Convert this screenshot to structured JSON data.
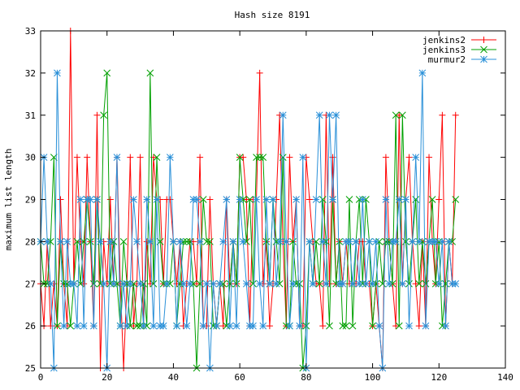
{
  "chart_data": {
    "type": "line",
    "title": "Hash size 8191",
    "xlabel": "",
    "ylabel": "maximum list length",
    "xlim": [
      0,
      140
    ],
    "ylim": [
      25,
      33
    ],
    "xticks": [
      0,
      20,
      40,
      60,
      80,
      100,
      120,
      140
    ],
    "yticks": [
      25,
      26,
      27,
      28,
      29,
      30,
      31,
      32,
      33
    ],
    "grid": false,
    "legend_position": "top-right",
    "series": [
      {
        "name": "jenkins2",
        "color": "#ff0000",
        "marker": "plus",
        "x": [
          0,
          1,
          2,
          3,
          4,
          5,
          6,
          7,
          8,
          9,
          10,
          11,
          12,
          13,
          14,
          15,
          16,
          17,
          18,
          19,
          20,
          21,
          22,
          23,
          24,
          25,
          26,
          27,
          28,
          29,
          30,
          31,
          32,
          33,
          34,
          35,
          36,
          37,
          38,
          39,
          40,
          41,
          42,
          43,
          44,
          45,
          46,
          47,
          48,
          49,
          50,
          51,
          52,
          53,
          54,
          55,
          56,
          57,
          58,
          59,
          60,
          61,
          62,
          63,
          64,
          65,
          66,
          67,
          68,
          69,
          70,
          71,
          72,
          73,
          74,
          75,
          76,
          77,
          78,
          79,
          80,
          81,
          82,
          83,
          84,
          85,
          86,
          87,
          88,
          89,
          90,
          91,
          92,
          93,
          94,
          95,
          96,
          97,
          98,
          99,
          100,
          101,
          102,
          103,
          104,
          105,
          106,
          107,
          108,
          109,
          110,
          111,
          112,
          113,
          114,
          115,
          116,
          117,
          118,
          119,
          120,
          121,
          122,
          123,
          124,
          125
        ],
        "y": [
          27,
          26,
          28,
          26,
          27,
          26,
          29,
          27,
          26,
          33,
          27,
          30,
          28,
          27,
          30,
          28,
          26,
          31,
          25,
          28,
          27,
          29,
          27,
          30,
          27,
          25,
          27,
          30,
          26,
          27,
          30,
          26,
          28,
          27,
          30,
          29,
          29,
          27,
          29,
          29,
          28,
          27,
          28,
          26,
          27,
          28,
          28,
          27,
          30,
          26,
          26,
          29,
          27,
          26,
          27,
          26,
          29,
          27,
          28,
          27,
          30,
          30,
          29,
          26,
          29,
          29,
          32,
          27,
          28,
          26,
          27,
          29,
          31,
          28,
          26,
          30,
          28,
          29,
          26,
          26,
          30,
          29,
          28,
          27,
          27,
          26,
          31,
          27,
          30,
          27,
          28,
          27,
          28,
          27,
          27,
          27,
          28,
          28,
          27,
          27,
          26,
          27,
          26,
          25,
          30,
          28,
          27,
          26,
          31,
          27,
          29,
          30,
          28,
          27,
          26,
          28,
          26,
          30,
          28,
          27,
          29,
          31,
          26,
          28,
          27,
          31
        ]
      },
      {
        "name": "jenkins3",
        "color": "#00a000",
        "marker": "cross",
        "x": [
          0,
          1,
          2,
          3,
          4,
          5,
          6,
          7,
          8,
          9,
          10,
          11,
          12,
          13,
          14,
          15,
          16,
          17,
          18,
          19,
          20,
          21,
          22,
          23,
          24,
          25,
          26,
          27,
          28,
          29,
          30,
          31,
          32,
          33,
          34,
          35,
          36,
          37,
          38,
          39,
          40,
          41,
          42,
          43,
          44,
          45,
          46,
          47,
          48,
          49,
          50,
          51,
          52,
          53,
          54,
          55,
          56,
          57,
          58,
          59,
          60,
          61,
          62,
          63,
          64,
          65,
          66,
          67,
          68,
          69,
          70,
          71,
          72,
          73,
          74,
          75,
          76,
          77,
          78,
          79,
          80,
          81,
          82,
          83,
          84,
          85,
          86,
          87,
          88,
          89,
          90,
          91,
          92,
          93,
          94,
          95,
          96,
          97,
          98,
          99,
          100,
          101,
          102,
          103,
          104,
          105,
          106,
          107,
          108,
          109,
          110,
          111,
          112,
          113,
          114,
          115,
          116,
          117,
          118,
          119,
          120,
          121,
          122,
          123,
          124,
          125
        ],
        "y": [
          28,
          27,
          27,
          28,
          30,
          26,
          28,
          27,
          27,
          26,
          27,
          28,
          27,
          28,
          29,
          28,
          27,
          29,
          27,
          31,
          32,
          27,
          28,
          27,
          26,
          28,
          27,
          26,
          27,
          26,
          26,
          27,
          26,
          32,
          27,
          30,
          28,
          27,
          27,
          27,
          28,
          26,
          27,
          28,
          28,
          28,
          27,
          25,
          27,
          29,
          28,
          28,
          26,
          26,
          27,
          27,
          26,
          27,
          28,
          27,
          30,
          29,
          28,
          29,
          27,
          30,
          30,
          30,
          28,
          27,
          29,
          28,
          27,
          30,
          26,
          26,
          28,
          27,
          27,
          25,
          26,
          28,
          27,
          28,
          27,
          29,
          28,
          26,
          29,
          27,
          28,
          26,
          26,
          29,
          26,
          28,
          29,
          27,
          29,
          28,
          26,
          27,
          28,
          27,
          28,
          28,
          27,
          31,
          26,
          31,
          28,
          27,
          28,
          29,
          27,
          28,
          27,
          28,
          29,
          27,
          28,
          26,
          27,
          28,
          28,
          29
        ]
      },
      {
        "name": "murmur2",
        "color": "#2a90d8",
        "marker": "star",
        "x": [
          0,
          1,
          2,
          3,
          4,
          5,
          6,
          7,
          8,
          9,
          10,
          11,
          12,
          13,
          14,
          15,
          16,
          17,
          18,
          19,
          20,
          21,
          22,
          23,
          24,
          25,
          26,
          27,
          28,
          29,
          30,
          31,
          32,
          33,
          34,
          35,
          36,
          37,
          38,
          39,
          40,
          41,
          42,
          43,
          44,
          45,
          46,
          47,
          48,
          49,
          50,
          51,
          52,
          53,
          54,
          55,
          56,
          57,
          58,
          59,
          60,
          61,
          62,
          63,
          64,
          65,
          66,
          67,
          68,
          69,
          70,
          71,
          72,
          73,
          74,
          75,
          76,
          77,
          78,
          79,
          80,
          81,
          82,
          83,
          84,
          85,
          86,
          87,
          88,
          89,
          90,
          91,
          92,
          93,
          94,
          95,
          96,
          97,
          98,
          99,
          100,
          101,
          102,
          103,
          104,
          105,
          106,
          107,
          108,
          109,
          110,
          111,
          112,
          113,
          114,
          115,
          116,
          117,
          118,
          119,
          120,
          121,
          122,
          123,
          124,
          125
        ],
        "y": [
          28,
          30,
          28,
          27,
          25,
          32,
          28,
          26,
          28,
          27,
          27,
          26,
          29,
          26,
          29,
          29,
          26,
          29,
          28,
          27,
          25,
          28,
          27,
          30,
          26,
          27,
          26,
          27,
          29,
          28,
          27,
          26,
          29,
          28,
          26,
          29,
          26,
          26,
          27,
          30,
          28,
          26,
          28,
          27,
          26,
          27,
          29,
          29,
          28,
          26,
          27,
          25,
          27,
          26,
          27,
          28,
          29,
          26,
          28,
          26,
          29,
          28,
          27,
          26,
          26,
          29,
          27,
          26,
          29,
          27,
          29,
          27,
          28,
          31,
          28,
          26,
          27,
          29,
          26,
          30,
          25,
          28,
          27,
          29,
          31,
          28,
          27,
          31,
          29,
          31,
          27,
          27,
          28,
          28,
          27,
          28,
          27,
          29,
          27,
          28,
          27,
          28,
          26,
          25,
          29,
          27,
          28,
          28,
          29,
          27,
          29,
          26,
          28,
          30,
          28,
          32,
          26,
          28,
          28,
          28,
          27,
          28,
          26,
          28,
          27,
          27
        ]
      }
    ]
  }
}
